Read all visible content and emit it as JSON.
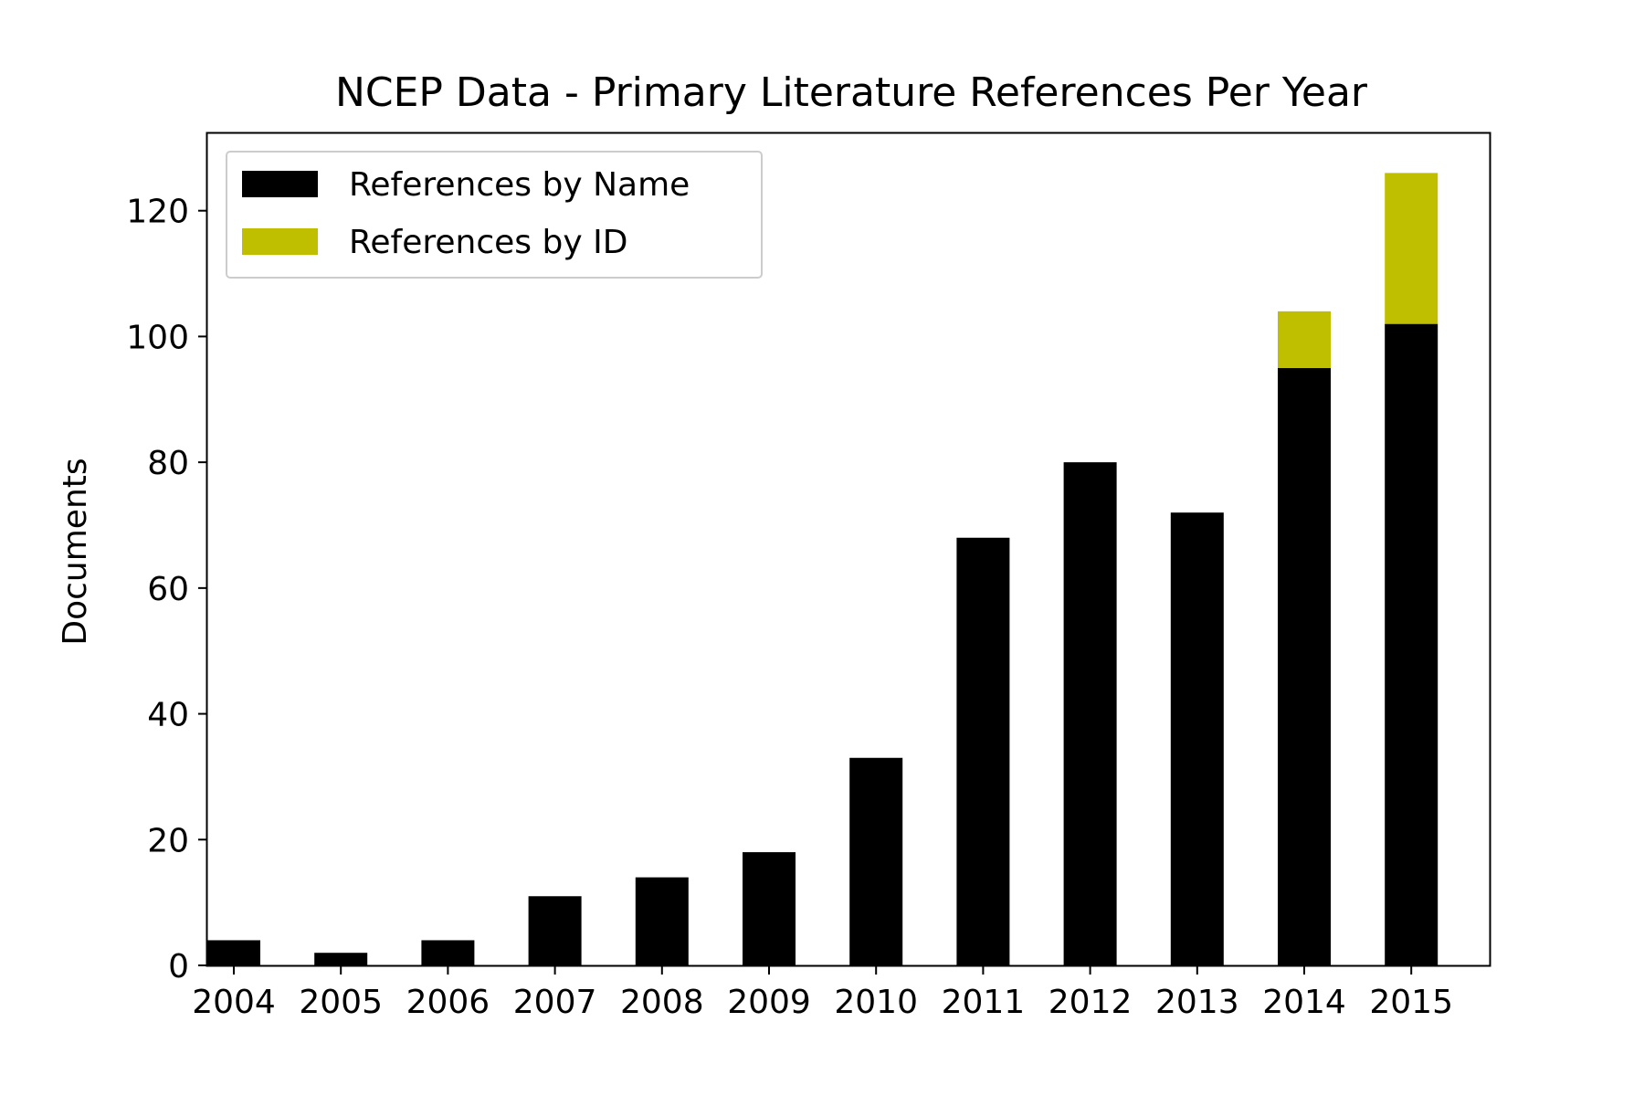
{
  "chart_data": {
    "type": "bar",
    "stacked": true,
    "title": "NCEP Data - Primary Literature References Per Year",
    "xlabel": "",
    "ylabel": "Documents",
    "categories": [
      "2004",
      "2005",
      "2006",
      "2007",
      "2008",
      "2009",
      "2010",
      "2011",
      "2012",
      "2013",
      "2014",
      "2015"
    ],
    "series": [
      {
        "name": "References by Name",
        "color": "#000000",
        "values": [
          4,
          2,
          4,
          11,
          14,
          18,
          33,
          68,
          80,
          72,
          95,
          102
        ]
      },
      {
        "name": "References by ID",
        "color": "#bfbf00",
        "values": [
          0,
          0,
          0,
          0,
          0,
          0,
          0,
          0,
          0,
          0,
          9,
          24
        ]
      }
    ],
    "ylim": [
      0,
      132.3
    ],
    "yticks": [
      0,
      20,
      40,
      60,
      80,
      100,
      120
    ],
    "grid": false,
    "legend_position": "top-left"
  }
}
